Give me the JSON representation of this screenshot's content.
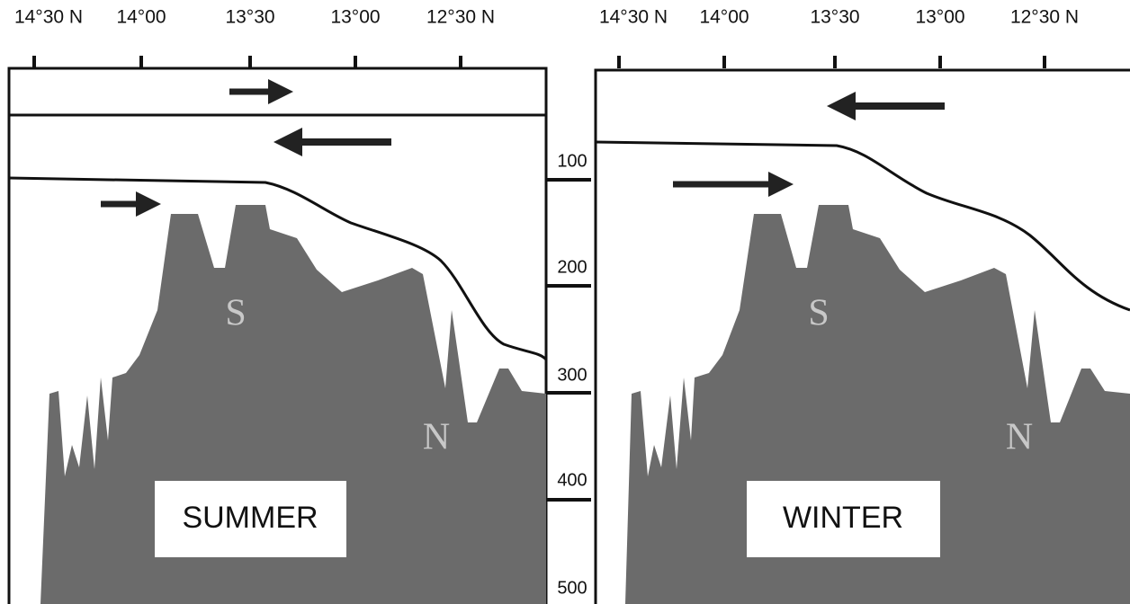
{
  "panels": [
    {
      "title": "SUMMER",
      "ridge_labels": [
        "S",
        "N"
      ],
      "latitude_labels": [
        "14°30 N",
        "14°00",
        "13°30",
        "13°00",
        "12°30 N"
      ]
    },
    {
      "title": "WINTER",
      "ridge_labels": [
        "S",
        "N"
      ],
      "latitude_labels": [
        "14°30 N",
        "14°00",
        "13°30",
        "13°00",
        "12°30 N"
      ]
    }
  ],
  "depth_labels": [
    100,
    200,
    300,
    400,
    500
  ]
}
